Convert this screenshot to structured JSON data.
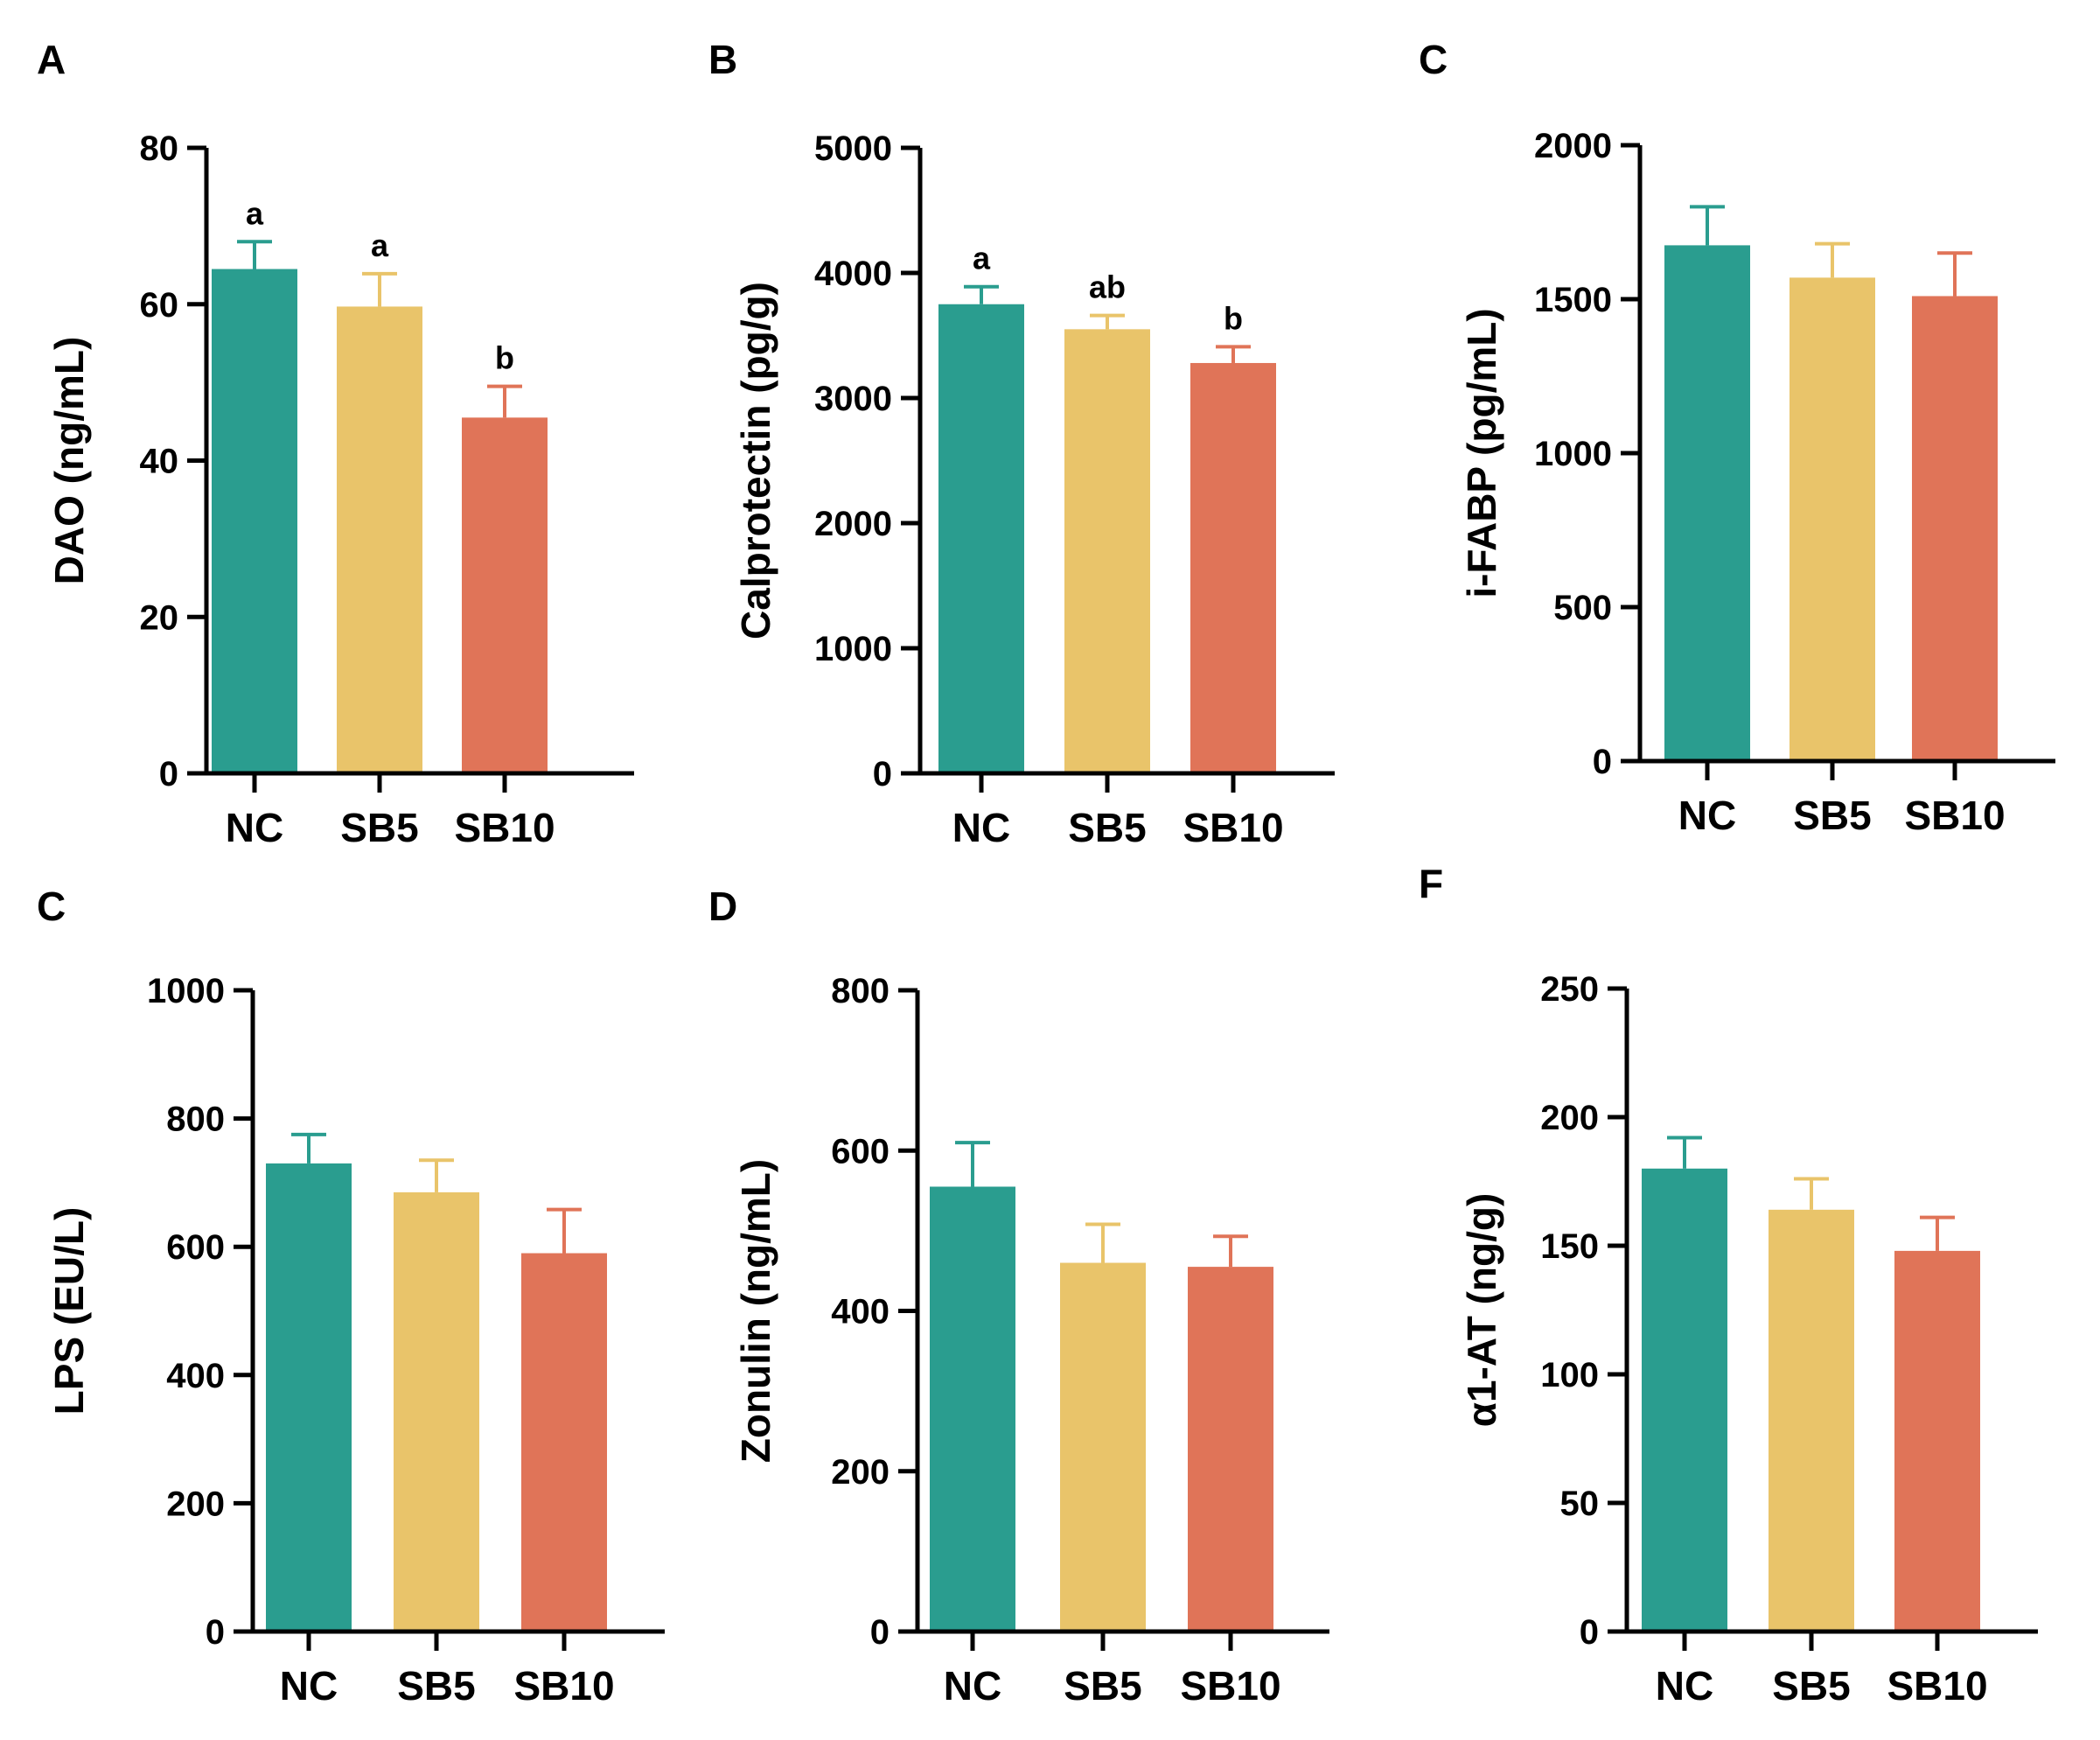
{
  "colors": {
    "NC": "#2a9d8f",
    "SB5": "#e9c46a",
    "SB10": "#e07458",
    "axis": "#000000"
  },
  "chart_data": [
    {
      "panel": "A",
      "type": "bar",
      "categories": [
        "NC",
        "SB5",
        "SB10"
      ],
      "values": [
        64.5,
        59.7,
        45.5
      ],
      "errors": [
        3.5,
        4.2,
        4.0
      ],
      "significance": [
        "a",
        "a",
        "b"
      ],
      "ylabel": "DAO (ng/mL)",
      "ylim": [
        0,
        80
      ],
      "yticks": [
        0,
        20,
        40,
        60,
        80
      ]
    },
    {
      "panel": "B",
      "type": "bar",
      "categories": [
        "NC",
        "SB5",
        "SB10"
      ],
      "values": [
        3750,
        3550,
        3280
      ],
      "errors": [
        140,
        110,
        130
      ],
      "significance": [
        "a",
        "ab",
        "b"
      ],
      "ylabel": "Calprotectin (pg/g)",
      "ylim": [
        0,
        5000
      ],
      "yticks": [
        0,
        1000,
        2000,
        3000,
        4000,
        5000
      ]
    },
    {
      "panel": "C",
      "type": "bar",
      "categories": [
        "NC",
        "SB5",
        "SB10"
      ],
      "values": [
        1675,
        1570,
        1510
      ],
      "errors": [
        125,
        110,
        140
      ],
      "significance": [
        "",
        "",
        ""
      ],
      "ylabel": "i-FABP (pg/mL)",
      "ylim": [
        0,
        2000
      ],
      "yticks": [
        0,
        500,
        1000,
        1500,
        2000
      ]
    },
    {
      "panel": "C",
      "type": "bar",
      "categories": [
        "NC",
        "SB5",
        "SB10"
      ],
      "values": [
        730,
        685,
        590
      ],
      "errors": [
        45,
        50,
        68
      ],
      "significance": [
        "",
        "",
        ""
      ],
      "ylabel": "LPS (EU/L)",
      "ylim": [
        0,
        1000
      ],
      "yticks": [
        0,
        200,
        400,
        600,
        800,
        1000
      ]
    },
    {
      "panel": "D",
      "type": "bar",
      "categories": [
        "NC",
        "SB5",
        "SB10"
      ],
      "values": [
        555,
        460,
        455
      ],
      "errors": [
        55,
        48,
        38
      ],
      "significance": [
        "",
        "",
        ""
      ],
      "ylabel": "Zonulin (ng/mL)",
      "ylim": [
        0,
        800
      ],
      "yticks": [
        0,
        200,
        400,
        600,
        800
      ]
    },
    {
      "panel": "F",
      "type": "bar",
      "categories": [
        "NC",
        "SB5",
        "SB10"
      ],
      "values": [
        180,
        164,
        148
      ],
      "errors": [
        12,
        12,
        13
      ],
      "significance": [
        "",
        "",
        ""
      ],
      "ylabel": "α1-AT (ng/g)",
      "ylim": [
        0,
        250
      ],
      "yticks": [
        0,
        50,
        100,
        150,
        200,
        250
      ]
    }
  ]
}
